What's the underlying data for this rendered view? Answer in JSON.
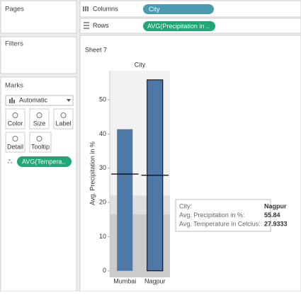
{
  "shelves": {
    "columns_label": "Columns",
    "columns_pill": "City",
    "rows_label": "Rows",
    "rows_pill": "AVG(Precipitation in .."
  },
  "panels": {
    "pages": "Pages",
    "filters": "Filters",
    "marks": "Marks"
  },
  "marks_card": {
    "mark_type": "Automatic",
    "buttons": [
      "Color",
      "Size",
      "Label",
      "Detail",
      "Tooltip"
    ],
    "pill": "AVG(Tempera.."
  },
  "sheet_title": "Sheet 7",
  "chart_data": {
    "type": "bar",
    "x_header": "City",
    "ylabel": "Avg. Precipitation in %",
    "categories": [
      "Mumbai",
      "Nagpur"
    ],
    "series": [
      {
        "color": "#4e79a7",
        "values": [
          41.4,
          55.84
        ]
      },
      {
        "type": "reference_line",
        "color": "#000000",
        "values": [
          28.3,
          27.9333
        ]
      }
    ],
    "band_tops": [
      22,
      16.5
    ],
    "band_colors": [
      "#dedede",
      "#cbcbcb"
    ],
    "ylim": [
      -1.9,
      58.5
    ],
    "yticks": [
      0,
      10,
      20,
      30,
      40,
      50
    ]
  },
  "tooltip": {
    "labels": [
      "City:",
      "Avg. Precipitation in %:",
      "Avg. Temperature in Celcius:"
    ]
  }
}
